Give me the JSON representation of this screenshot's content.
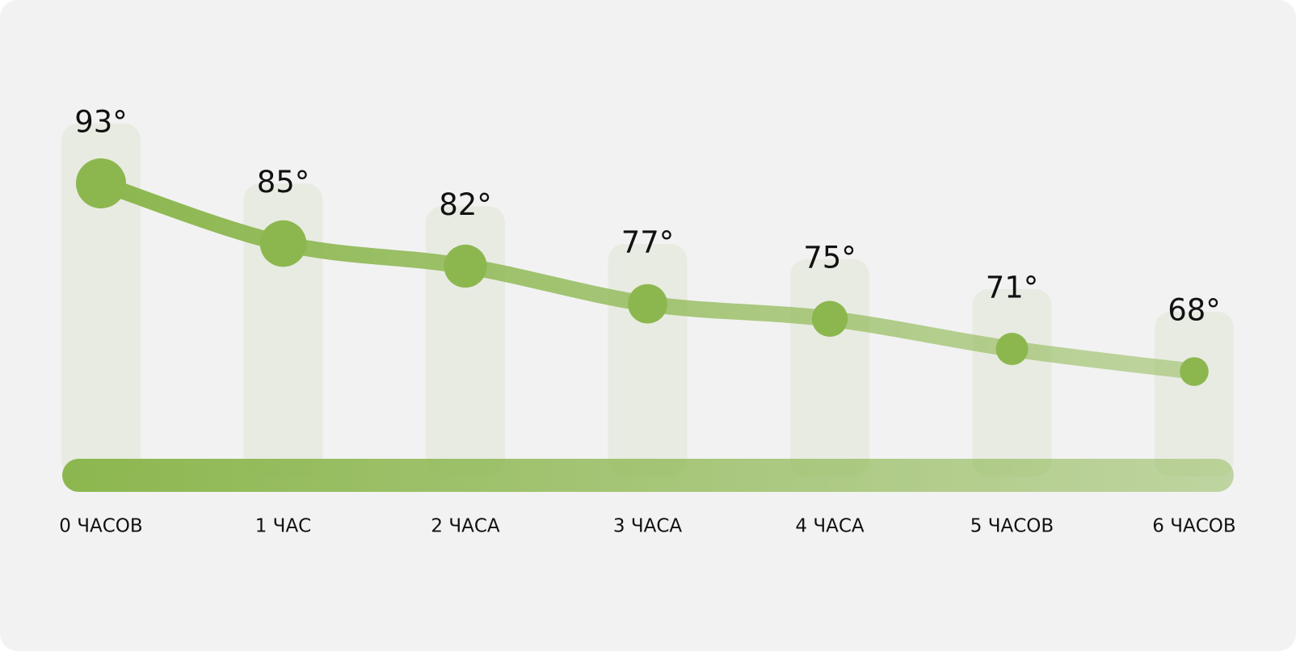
{
  "chart_data": {
    "type": "line",
    "categories": [
      "0 ЧАСОВ",
      "1 ЧАС",
      "2 ЧАСА",
      "3 ЧАСА",
      "4 ЧАСА",
      "5 ЧАСОВ",
      "6 ЧАСОВ"
    ],
    "values": [
      93,
      85,
      82,
      77,
      75,
      71,
      68
    ],
    "value_labels": [
      "93°",
      "85°",
      "82°",
      "77°",
      "75°",
      "71°",
      "68°"
    ],
    "color": "#8cb74f"
  }
}
